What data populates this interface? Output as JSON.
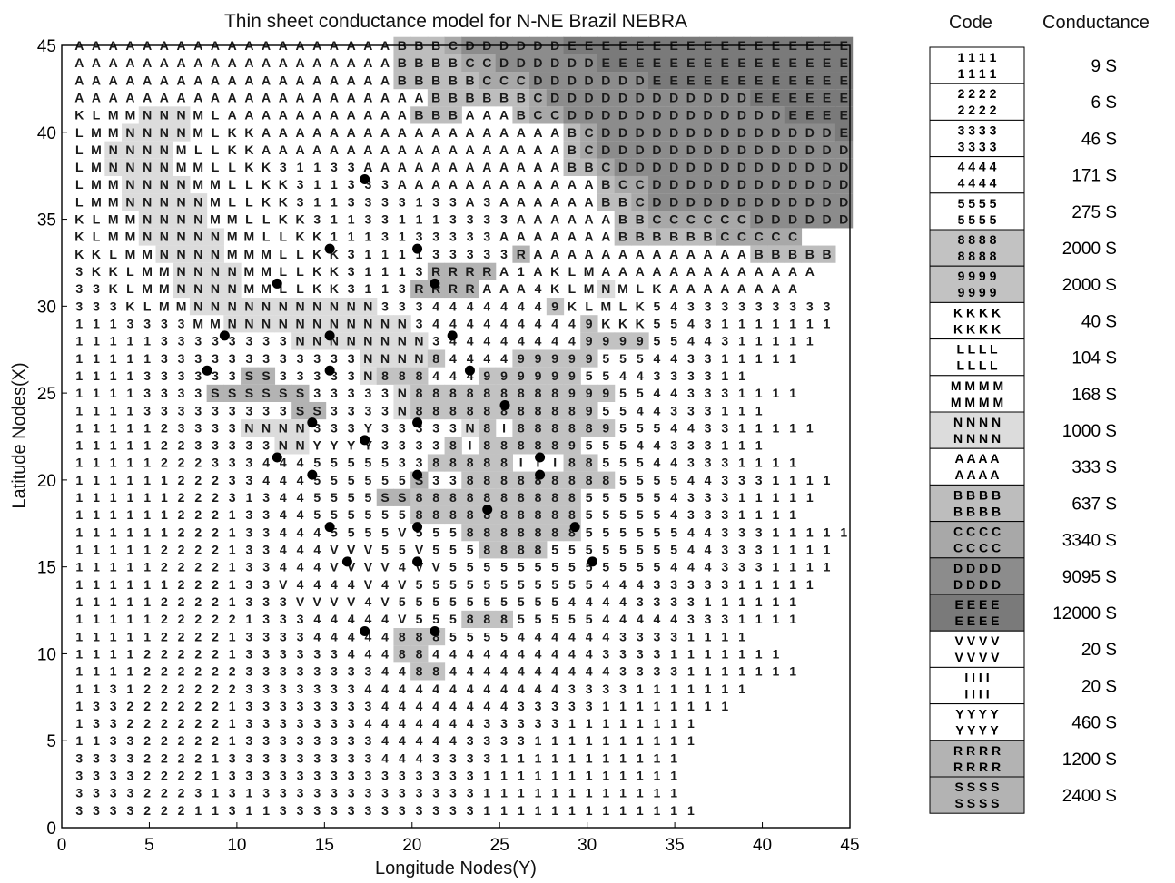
{
  "chart_data": {
    "type": "heatmap",
    "title": "Thin sheet conductance model for N-NE Brazil NEBRA",
    "xlabel": "Longitude Nodes(Y)",
    "ylabel": "Latitude Nodes(X)",
    "xlim": [
      0,
      45
    ],
    "ylim": [
      0,
      45
    ],
    "x_ticks": [
      "0",
      "5",
      "10",
      "15",
      "20",
      "25",
      "30",
      "35",
      "40",
      "45"
    ],
    "y_ticks": [
      "0",
      "5",
      "10",
      "15",
      "20",
      "25",
      "30",
      "35",
      "40",
      "45"
    ],
    "grid": false,
    "legend_position": "right",
    "legend_headers": {
      "code": "Code",
      "conductance": "Conductance"
    },
    "legend": [
      {
        "code": "1",
        "conductance": "9 S",
        "color": "#ffffff"
      },
      {
        "code": "2",
        "conductance": "6 S",
        "color": "#ffffff"
      },
      {
        "code": "3",
        "conductance": "46 S",
        "color": "#ffffff"
      },
      {
        "code": "4",
        "conductance": "171 S",
        "color": "#ffffff"
      },
      {
        "code": "5",
        "conductance": "275 S",
        "color": "#ffffff"
      },
      {
        "code": "8",
        "conductance": "2000 S",
        "color": "#c2c2c2"
      },
      {
        "code": "9",
        "conductance": "2000 S",
        "color": "#c2c2c2"
      },
      {
        "code": "K",
        "conductance": "40 S",
        "color": "#ffffff"
      },
      {
        "code": "L",
        "conductance": "104 S",
        "color": "#ffffff"
      },
      {
        "code": "M",
        "conductance": "168 S",
        "color": "#ffffff"
      },
      {
        "code": "N",
        "conductance": "1000 S",
        "color": "#dcdcdc"
      },
      {
        "code": "A",
        "conductance": "333 S",
        "color": "#ffffff"
      },
      {
        "code": "B",
        "conductance": "637 S",
        "color": "#bdbdbd"
      },
      {
        "code": "C",
        "conductance": "3340 S",
        "color": "#a8a8a8"
      },
      {
        "code": "D",
        "conductance": "9095 S",
        "color": "#8c8c8c"
      },
      {
        "code": "E",
        "conductance": "12000 S",
        "color": "#7a7a7a"
      },
      {
        "code": "V",
        "conductance": "20 S",
        "color": "#ffffff"
      },
      {
        "code": "I",
        "conductance": "20 S",
        "color": "#ffffff"
      },
      {
        "code": "Y",
        "conductance": "460 S",
        "color": "#ffffff"
      },
      {
        "code": "R",
        "conductance": "1200 S",
        "color": "#b3b3b3"
      },
      {
        "code": "S",
        "conductance": "2400 S",
        "color": "#b3b3b3"
      }
    ],
    "grid_rows_top_to_bottom": [
      "AAAAAAAAAAAAAAAAAAABBBCDDDDDDEEEEEEEEEEEEEEEEE",
      "AAAAAAAAAAAAAAAAAAABBBBCCDDDDDDEEEEEEEEEEEEEEE",
      "AAAAAAAAAAAAAAAAAAABBBBBCCCDDDDDDDEEEEEEEEEEEE",
      "AAAAAAAAAAAAAAAAAAAAABBBBBBCDDDDDDDDDDDDEEEEEE",
      "KLMMNNNMLAAAAAAAAAAABBBAAABCCDDDDDDDDDDDDDEEEE",
      "LMMNNNNMLKKAAAAAAAAAAAAAAAAAABCDDDDDDDDDDDDDDE",
      "LMNNNNMLLKKAAAAAAAAAAAAAAAAAABCDDDDDDDDDDDDDDD",
      "LMNNNNMMLLKK31133AAAAAAAAAAAABBCDDDDDDDDDDDDDD",
      "LMMNNNNMMLLKK311333AAAAAAAAAAAABCCDDDDDDDDDDDD",
      "LMMNNNNNMLLKK3113333133A3AAAAAABBCDDDDDDDDDDDD",
      "KLMMNNNNMMLLKK311331113333AAAAAABBCCCCCCDDDDDD",
      "KLMMNNNNNMMLLKK1113133333AAAAAAABBBBBBCCCCC",
      "KKLMMNNNNMMMLLKK3111133333RAAAAAAAAAAAAABBBBB",
      "3KKLMMNNNNMMLLKK31113RRRRA1AKLMAAAAAAAAAAAAA",
      "33KLMMNNNNMMLLKK3113RRRRAAA4KLMNMLKAAAAAAAA",
      "333KLMMNNNNNNNNNNN33344444449KLMLK54333333333",
      "1113333MMNNNNNNNNNNN34444444449KKK55431111111",
      "1111133333333NNNNNNNN34444444499995544311111",
      "11111333333333333NNNN8444499999555443311111",
      "1111333333SS33333N8884449999995544333311",
      "11113333SSSSSS33333N88888888899955443331111",
      "1111333333333SS3333N888888888895544333111",
      "1111123333NNNN333Y33333N8I888889555443311111",
      "111112233333NNYYYY33338I88888955544333111",
      "11111222333444555553388888III88555443331111",
      "11111122233444555555S338888888885555443331111",
      "111111222313445555SS888888888855555433311111",
      "1111112221334455555588888888885555543331111",
      "1111112221334445555V55588888885555554433311111",
      "111112222133444VVV55V555888855555555443331111",
      "111112222133444VVVV4VV55555555555554443331111",
      "111111222133V4444V4V555555555554443333311111",
      "1111122221333VVVV4V555555555544443333111111",
      "1111122222133344444V55588855555444443331111",
      "1111122221333344444888555544444433331111",
      "111122222133333344488444444444433331111111",
      "1111222222333333334488444444444433331111111",
      "1131222222333333344444444444433331111111",
      "133222222133333333444444443333311111111",
      "1332222221333333344444443333311111111",
      "1133222221333333334444433331111111111",
      "333322221333333333444333311111111111",
      "333322221333333333333333111111111111",
      "333322231313333333333333111111111111",
      "3333222113113333333333331111111111111"
    ],
    "markers_xy": [
      [
        17.3,
        37.3
      ],
      [
        20.3,
        33.3
      ],
      [
        15.3,
        33.3
      ],
      [
        12.3,
        31.3
      ],
      [
        21.3,
        31.3
      ],
      [
        9.3,
        28.3
      ],
      [
        15.3,
        28.3
      ],
      [
        22.3,
        28.3
      ],
      [
        8.3,
        26.3
      ],
      [
        15.3,
        26.3
      ],
      [
        23.3,
        26.3
      ],
      [
        25.3,
        24.3
      ],
      [
        14.3,
        23.3
      ],
      [
        20.3,
        23.3
      ],
      [
        17.3,
        22.3
      ],
      [
        12.3,
        21.3
      ],
      [
        27.3,
        21.3
      ],
      [
        14.3,
        20.3
      ],
      [
        20.3,
        20.3
      ],
      [
        27.3,
        20.3
      ],
      [
        24.3,
        18.3
      ],
      [
        15.3,
        17.3
      ],
      [
        20.3,
        17.3
      ],
      [
        29.3,
        17.3
      ],
      [
        16.3,
        15.3
      ],
      [
        20.3,
        15.3
      ],
      [
        30.3,
        15.3
      ],
      [
        17.3,
        11.3
      ],
      [
        21.3,
        11.3
      ]
    ]
  }
}
